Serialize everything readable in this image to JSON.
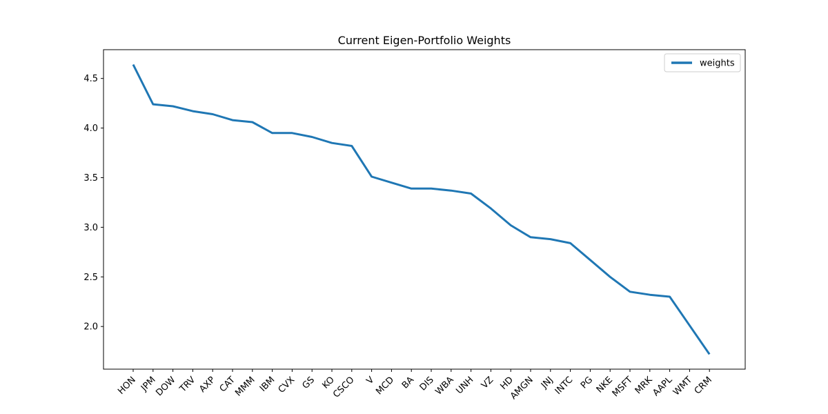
{
  "chart_data": {
    "type": "line",
    "title": "Current Eigen-Portfolio Weights",
    "xlabel": "",
    "ylabel": "",
    "categories": [
      "HON",
      "JPM",
      "DOW",
      "TRV",
      "AXP",
      "CAT",
      "MMM",
      "IBM",
      "CVX",
      "GS",
      "KO",
      "CSCO",
      "V",
      "MCD",
      "BA",
      "DIS",
      "WBA",
      "UNH",
      "VZ",
      "HD",
      "AMGN",
      "JNJ",
      "INTC",
      "PG",
      "NKE",
      "MSFT",
      "MRK",
      "AAPL",
      "WMT",
      "CRM"
    ],
    "series": [
      {
        "name": "weights",
        "color": "#1f77b4",
        "values": [
          4.64,
          4.24,
          4.22,
          4.17,
          4.14,
          4.08,
          4.06,
          3.95,
          3.95,
          3.91,
          3.85,
          3.82,
          3.51,
          3.45,
          3.39,
          3.39,
          3.37,
          3.34,
          3.19,
          3.02,
          2.9,
          2.88,
          2.84,
          2.67,
          2.5,
          2.35,
          2.32,
          2.3,
          2.01,
          1.72
        ]
      }
    ],
    "ylim": [
      1.57,
      4.79
    ],
    "yticks": [
      "2.0",
      "2.5",
      "3.0",
      "3.5",
      "4.0",
      "4.5"
    ],
    "ytick_values": [
      2.0,
      2.5,
      3.0,
      3.5,
      4.0,
      4.5
    ],
    "grid": false,
    "legend_position": "upper-right"
  }
}
